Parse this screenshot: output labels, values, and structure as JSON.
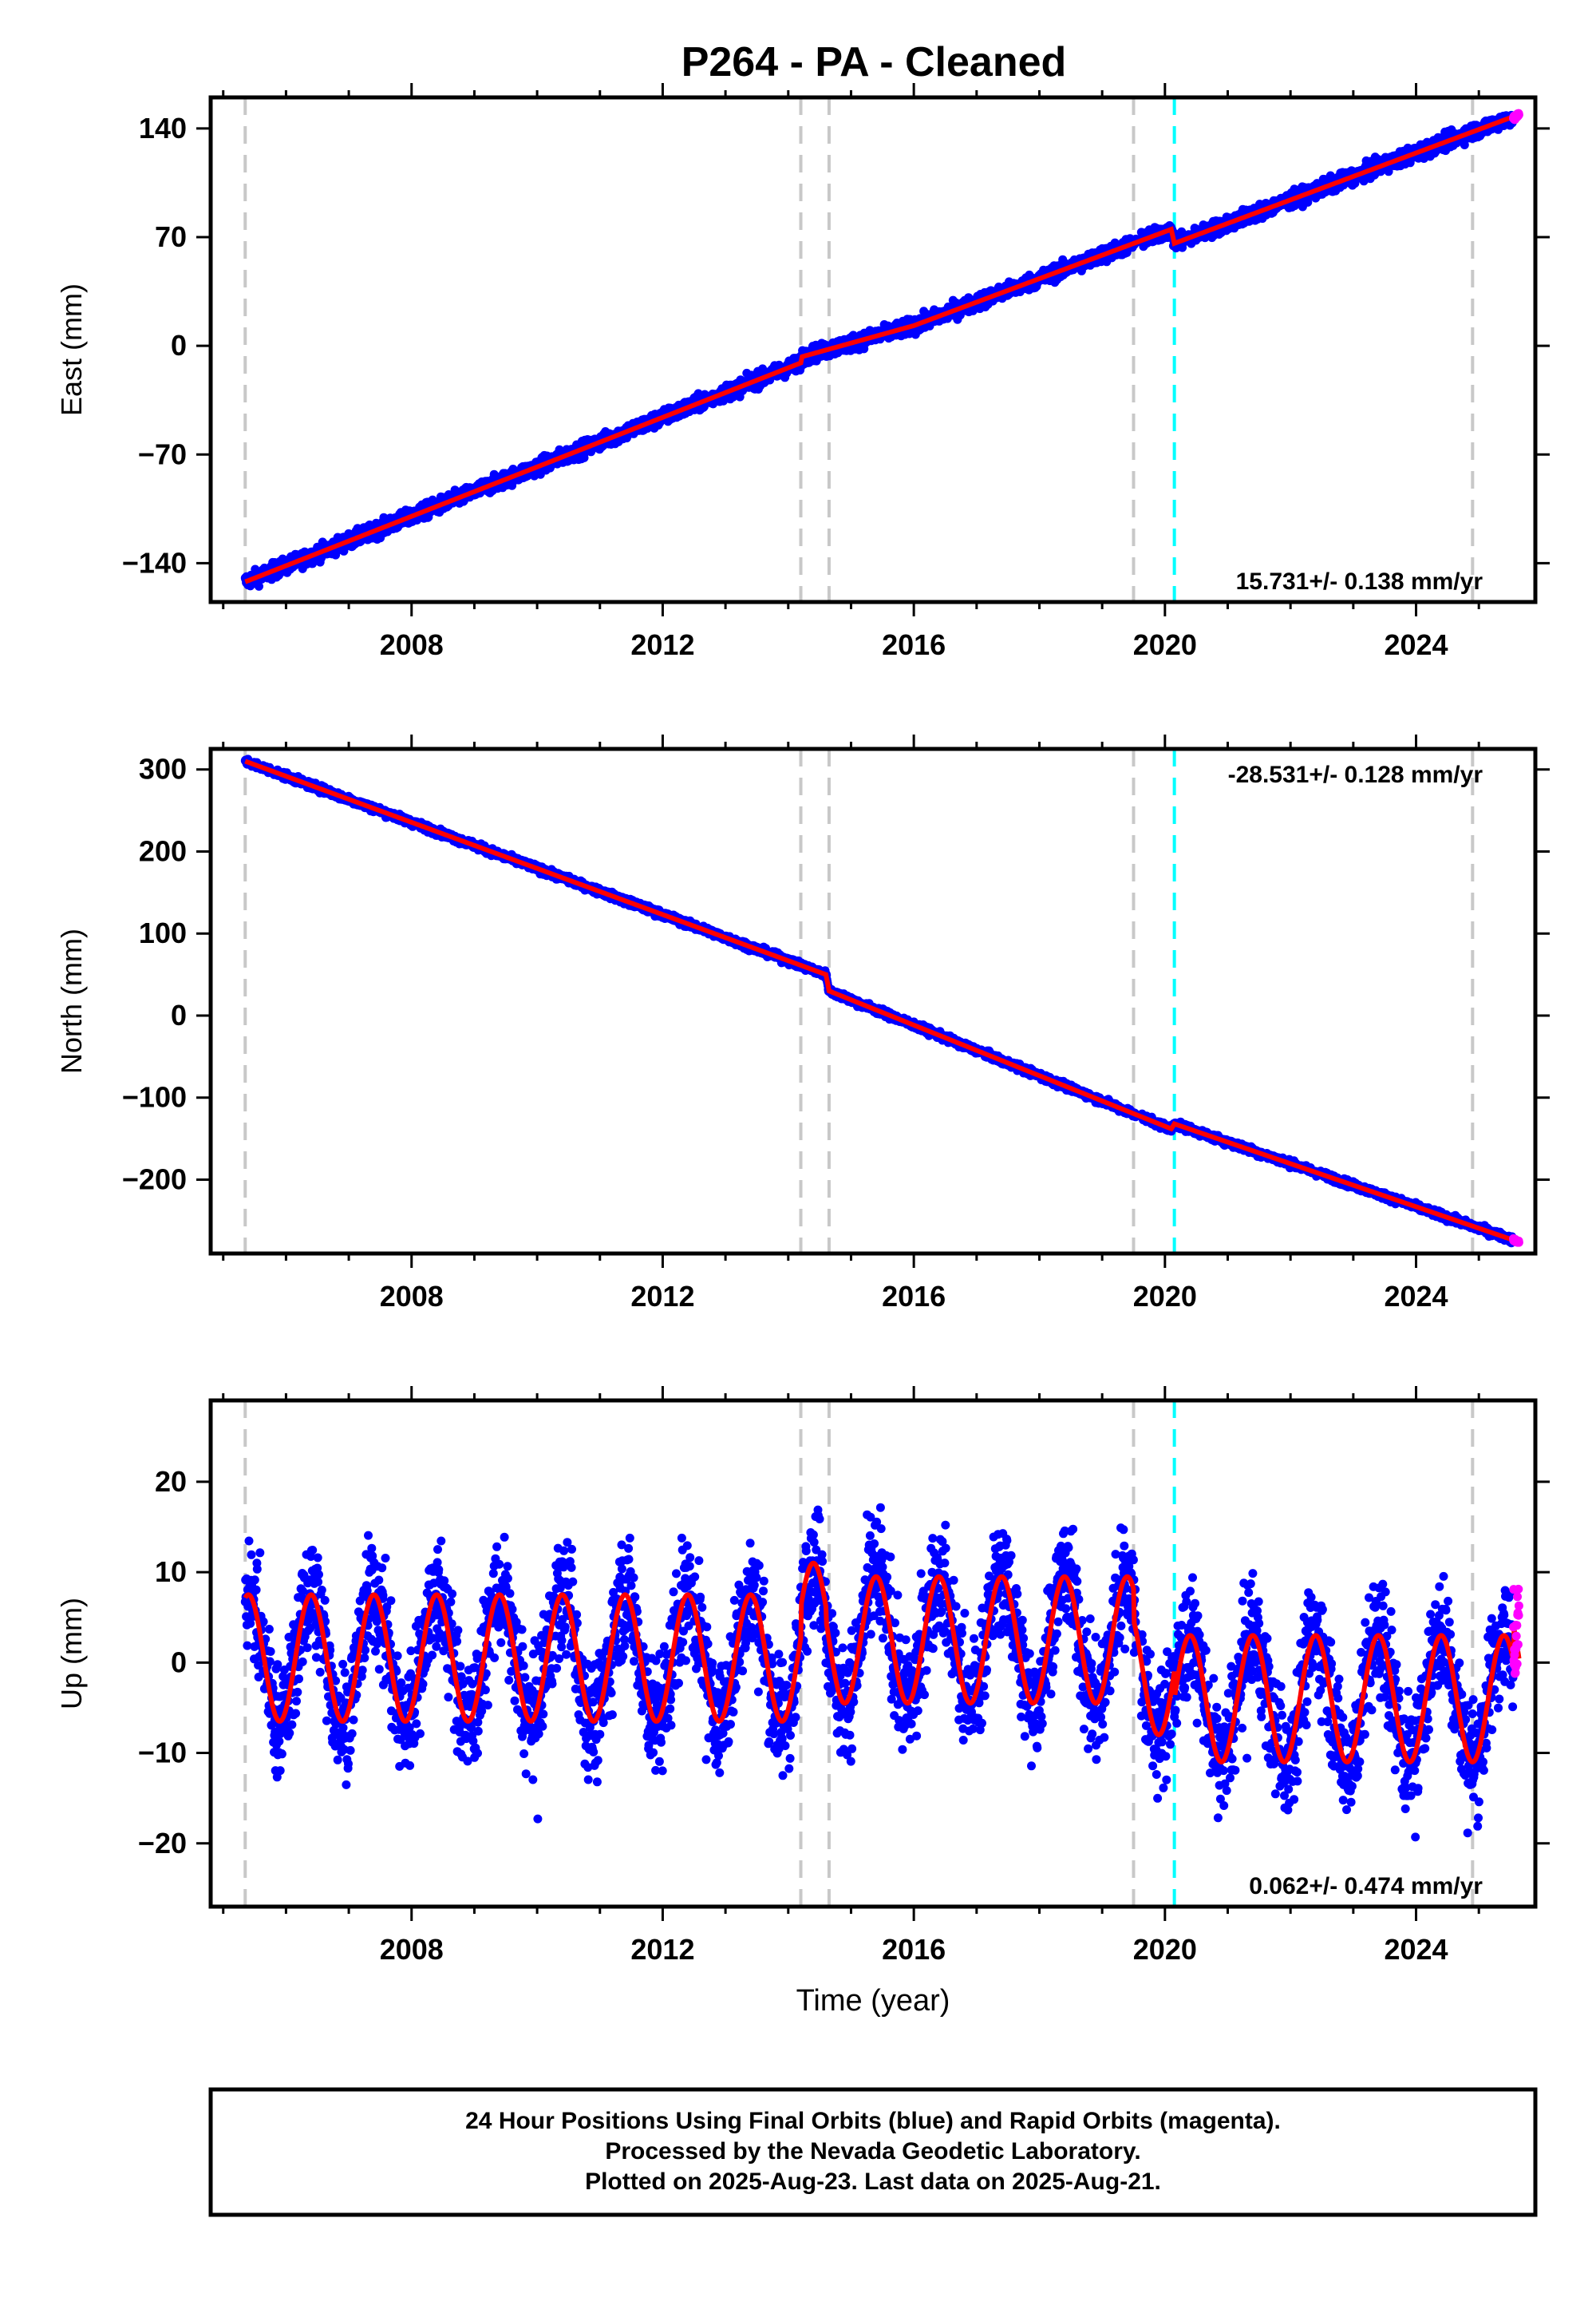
{
  "title": "P264  - PA - Cleaned",
  "colors": {
    "final_orbits": "#0000ff",
    "rapid_orbits": "#ff00ff",
    "model_fit": "#ff0000",
    "event_line": "#c8c8c8",
    "equipment_line": "#00ffff"
  },
  "chart_data": [
    {
      "type": "scatter",
      "ylabel": "East (mm)",
      "xlabel": "",
      "xlim": [
        2004.8,
        2025.9
      ],
      "ylim": [
        -165,
        160
      ],
      "x_ticks": [
        "2008",
        "2012",
        "2016",
        "2020",
        "2024"
      ],
      "y_ticks": [
        -140,
        -70,
        0,
        70,
        140
      ],
      "y_tick_labels": [
        "−140",
        "−70",
        "0",
        "70",
        "140"
      ],
      "rate_label": "15.731+/- 0.138 mm/yr",
      "rate_position": "bottom-right",
      "series": [
        {
          "name": "final orbits",
          "color": "#0000ff",
          "x_start": 2005.35,
          "x_end": 2025.55,
          "start_value": -152,
          "end_value": 145,
          "noise_mm": 3.5
        },
        {
          "name": "rapid orbits",
          "color": "#ff00ff",
          "x_start": 2025.55,
          "x_end": 2025.64,
          "start_value": 146,
          "end_value": 149
        },
        {
          "name": "model",
          "color": "#ff0000",
          "x": [
            2005.35,
            2010,
            2014.2,
            2014.22,
            2016,
            2020.1,
            2020.15,
            2025.64
          ],
          "y": [
            -152,
            -78,
            -11,
            -7,
            13,
            75,
            66,
            149
          ]
        }
      ],
      "grid": false,
      "legend": "none"
    },
    {
      "type": "scatter",
      "ylabel": "North (mm)",
      "xlabel": "",
      "xlim": [
        2004.8,
        2025.9
      ],
      "ylim": [
        -290,
        325
      ],
      "x_ticks": [
        "2008",
        "2012",
        "2016",
        "2020",
        "2024"
      ],
      "y_ticks": [
        -200,
        -100,
        0,
        100,
        200,
        300
      ],
      "y_tick_labels": [
        "−200",
        "−100",
        "0",
        "100",
        "200",
        "300"
      ],
      "rate_label": "-28.531+/- 0.128 mm/yr",
      "rate_position": "top-right",
      "series": [
        {
          "name": "final orbits",
          "color": "#0000ff",
          "x_start": 2005.35,
          "x_end": 2025.55,
          "start_value": 310,
          "end_value": -272,
          "noise_mm": 3
        },
        {
          "name": "rapid orbits",
          "color": "#ff00ff",
          "x_start": 2025.55,
          "x_end": 2025.64,
          "start_value": -273,
          "end_value": -276
        },
        {
          "name": "model",
          "color": "#ff0000",
          "x": [
            2005.35,
            2014.6,
            2014.65,
            2020.1,
            2020.15,
            2025.64
          ],
          "y": [
            310,
            50,
            30,
            -138,
            -132,
            -276
          ]
        }
      ],
      "grid": false,
      "legend": "none"
    },
    {
      "type": "scatter",
      "ylabel": "Up (mm)",
      "xlabel": "Time (year)",
      "xlim": [
        2004.8,
        2025.9
      ],
      "ylim": [
        -27,
        29
      ],
      "x_ticks": [
        "2008",
        "2012",
        "2016",
        "2020",
        "2024"
      ],
      "y_ticks": [
        -20,
        -10,
        0,
        10,
        20
      ],
      "y_tick_labels": [
        "−20",
        "−10",
        "0",
        "10",
        "20"
      ],
      "rate_label": "0.062+/- 0.474 mm/yr",
      "rate_position": "bottom-right",
      "series": [
        {
          "name": "final orbits",
          "color": "#0000ff",
          "x_start": 2005.35,
          "x_end": 2025.55,
          "seasonal_amplitude_mm": 7,
          "noise_mm": 4.5
        },
        {
          "name": "rapid orbits",
          "color": "#ff00ff",
          "x_start": 2025.55,
          "x_end": 2025.64,
          "min": -2,
          "max": 9
        },
        {
          "name": "model",
          "color": "#ff0000",
          "seasonal_amplitude_mm": 7,
          "segment_offsets": [
            {
              "from": 2005.35,
              "to": 2014.2,
              "offset": 0.5
            },
            {
              "from": 2014.2,
              "to": 2014.6,
              "offset": 4
            },
            {
              "from": 2014.6,
              "to": 2019.5,
              "offset": 2.5
            },
            {
              "from": 2019.5,
              "to": 2020.15,
              "offset": -1
            },
            {
              "from": 2020.15,
              "to": 2025.55,
              "offset": -4
            }
          ]
        }
      ],
      "grid": false,
      "legend": "none"
    }
  ],
  "event_lines_gray": [
    2005.35,
    2014.2,
    2014.65,
    2019.5,
    2024.9
  ],
  "event_lines_cyan": [
    2020.15
  ],
  "caption": {
    "line1": "24 Hour Positions Using Final Orbits (blue) and Rapid Orbits (magenta).",
    "line2": "Processed by the Nevada Geodetic Laboratory.",
    "line3": "Plotted on 2025-Aug-23. Last data on 2025-Aug-21."
  }
}
